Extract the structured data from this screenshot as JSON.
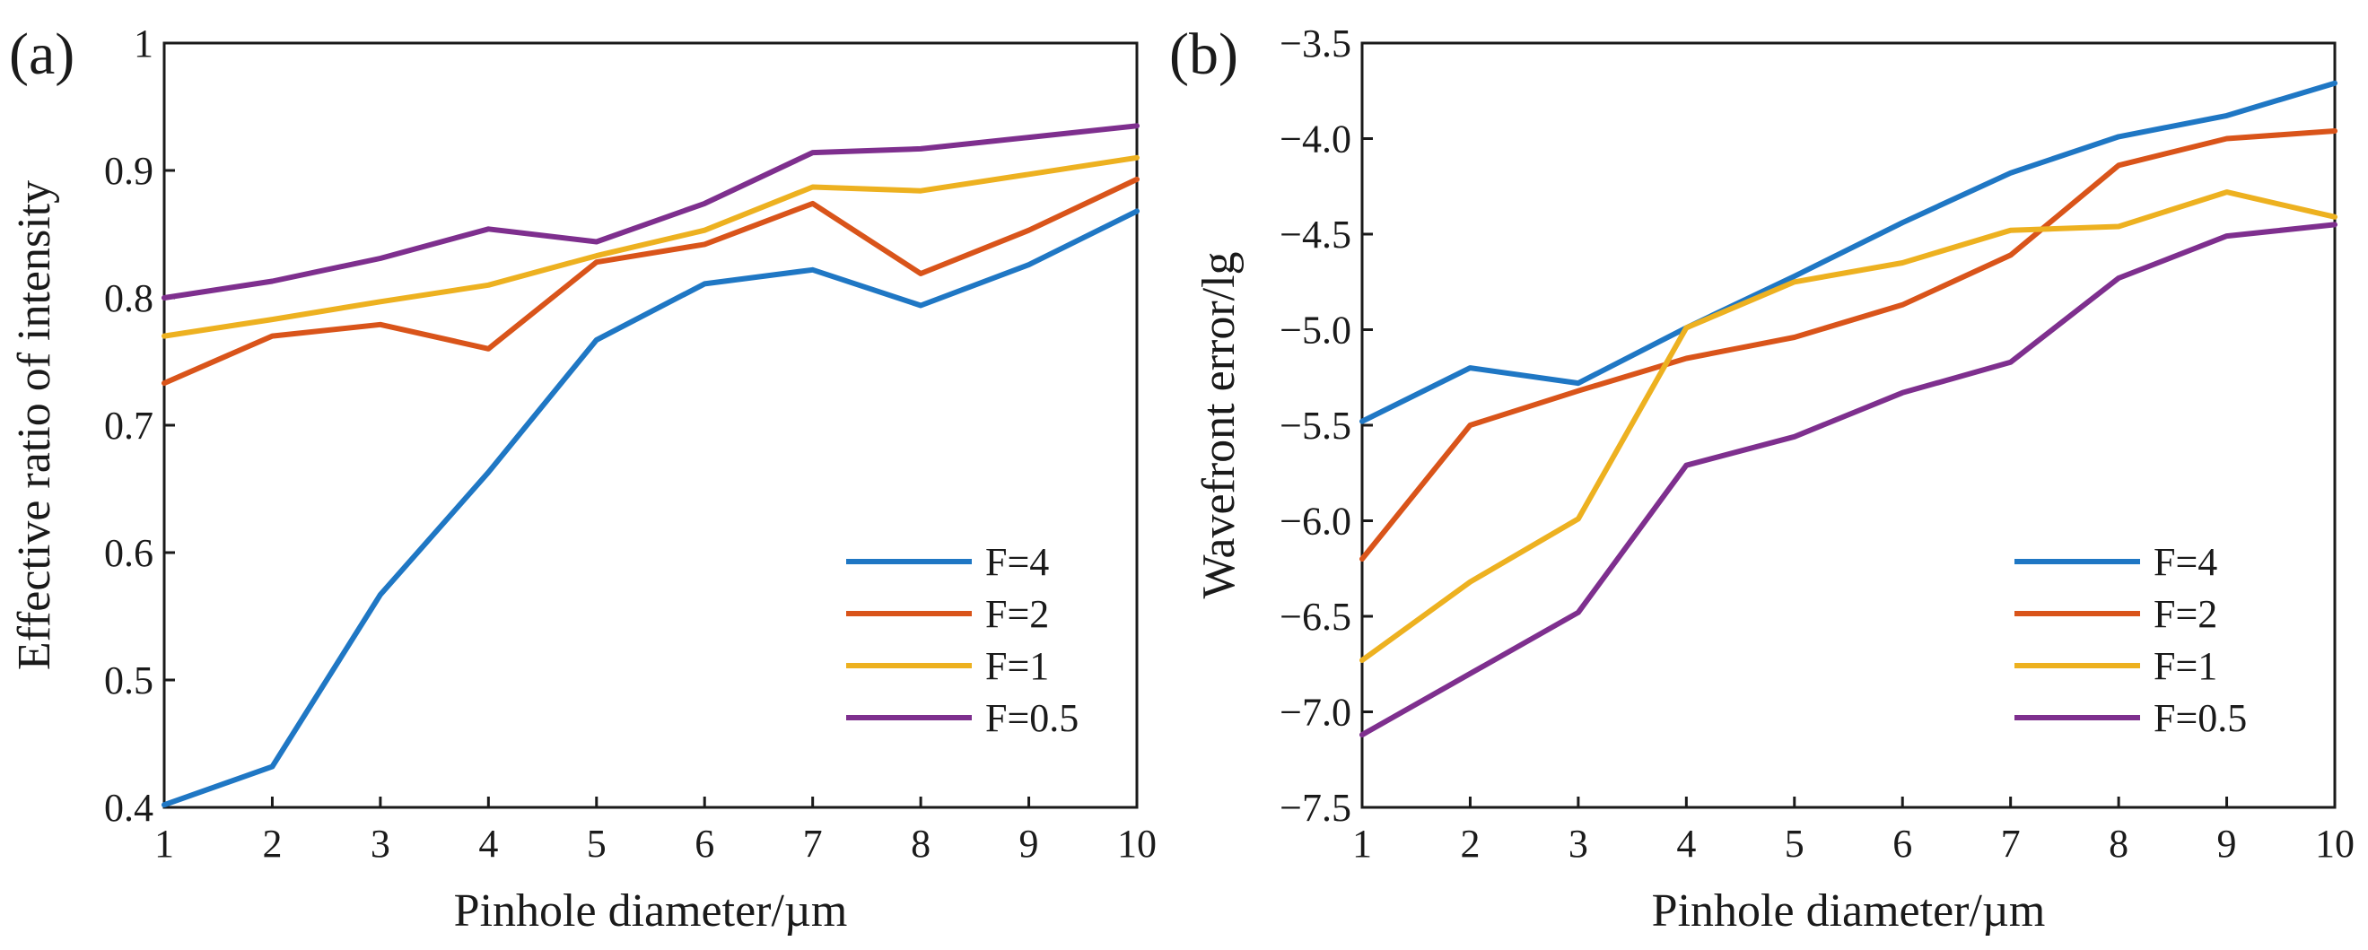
{
  "chart_data": [
    {
      "type": "line",
      "panel_label": "(a)",
      "title": "",
      "xlabel": "Pinhole diameter/µm",
      "ylabel": "Effective ratio of intensity",
      "xlim": [
        1,
        10
      ],
      "ylim": [
        0.4,
        1
      ],
      "x": [
        1,
        2,
        3,
        4,
        5,
        6,
        7,
        8,
        9,
        10
      ],
      "xticks": [
        1,
        2,
        3,
        4,
        5,
        6,
        7,
        8,
        9,
        10
      ],
      "yticks": [
        0.4,
        0.5,
        0.6,
        0.7,
        0.8,
        0.9,
        1
      ],
      "ytick_labels": [
        "0.4",
        "0.5",
        "0.6",
        "0.7",
        "0.8",
        "0.9",
        "1"
      ],
      "grid": false,
      "legend": "bottom-right",
      "series": [
        {
          "name": "F=4",
          "color": "#1f77c4",
          "values": [
            0.402,
            0.432,
            0.567,
            0.663,
            0.767,
            0.811,
            0.822,
            0.794,
            0.826,
            0.868
          ]
        },
        {
          "name": "F=2",
          "color": "#d9541a",
          "values": [
            0.733,
            0.77,
            0.779,
            0.76,
            0.828,
            0.842,
            0.874,
            0.819,
            0.853,
            0.893
          ]
        },
        {
          "name": "F=1",
          "color": "#edb120",
          "values": [
            0.77,
            0.783,
            0.797,
            0.81,
            0.833,
            0.853,
            0.887,
            0.884,
            0.897,
            0.91
          ]
        },
        {
          "name": "F=0.5",
          "color": "#7e2f8e",
          "values": [
            0.8,
            0.813,
            0.831,
            0.854,
            0.844,
            0.874,
            0.914,
            0.917,
            0.926,
            0.935
          ]
        }
      ]
    },
    {
      "type": "line",
      "panel_label": "(b)",
      "title": "",
      "xlabel": "Pinhole diameter/µm",
      "ylabel": "Wavefront error/lg",
      "xlim": [
        1,
        10
      ],
      "ylim": [
        -7.5,
        -3.5
      ],
      "x": [
        1,
        2,
        3,
        4,
        5,
        6,
        7,
        8,
        9,
        10
      ],
      "xticks": [
        1,
        2,
        3,
        4,
        5,
        6,
        7,
        8,
        9,
        10
      ],
      "yticks": [
        -7.5,
        -7.0,
        -6.5,
        -6.0,
        -5.5,
        -5.0,
        -4.5,
        -4.0,
        -3.5
      ],
      "ytick_labels": [
        "−7.5",
        "−7.0",
        "−6.5",
        "−6.0",
        "−5.5",
        "−5.0",
        "−4.5",
        "−4.0",
        "−3.5"
      ],
      "grid": false,
      "legend": "bottom-right",
      "series": [
        {
          "name": "F=4",
          "color": "#1f77c4",
          "values": [
            -5.48,
            -5.2,
            -5.28,
            -4.99,
            -4.72,
            -4.44,
            -4.18,
            -3.99,
            -3.88,
            -3.71
          ]
        },
        {
          "name": "F=2",
          "color": "#d9541a",
          "values": [
            -6.2,
            -5.5,
            -5.32,
            -5.15,
            -5.04,
            -4.87,
            -4.61,
            -4.14,
            -4.0,
            -3.96
          ]
        },
        {
          "name": "F=1",
          "color": "#edb120",
          "values": [
            -6.73,
            -6.32,
            -5.99,
            -4.99,
            -4.75,
            -4.65,
            -4.48,
            -4.46,
            -4.28,
            -4.41
          ]
        },
        {
          "name": "F=0.5",
          "color": "#7e2f8e",
          "values": [
            -7.12,
            -6.8,
            -6.48,
            -5.71,
            -5.56,
            -5.33,
            -5.17,
            -4.73,
            -4.51,
            -4.45
          ]
        }
      ]
    }
  ]
}
